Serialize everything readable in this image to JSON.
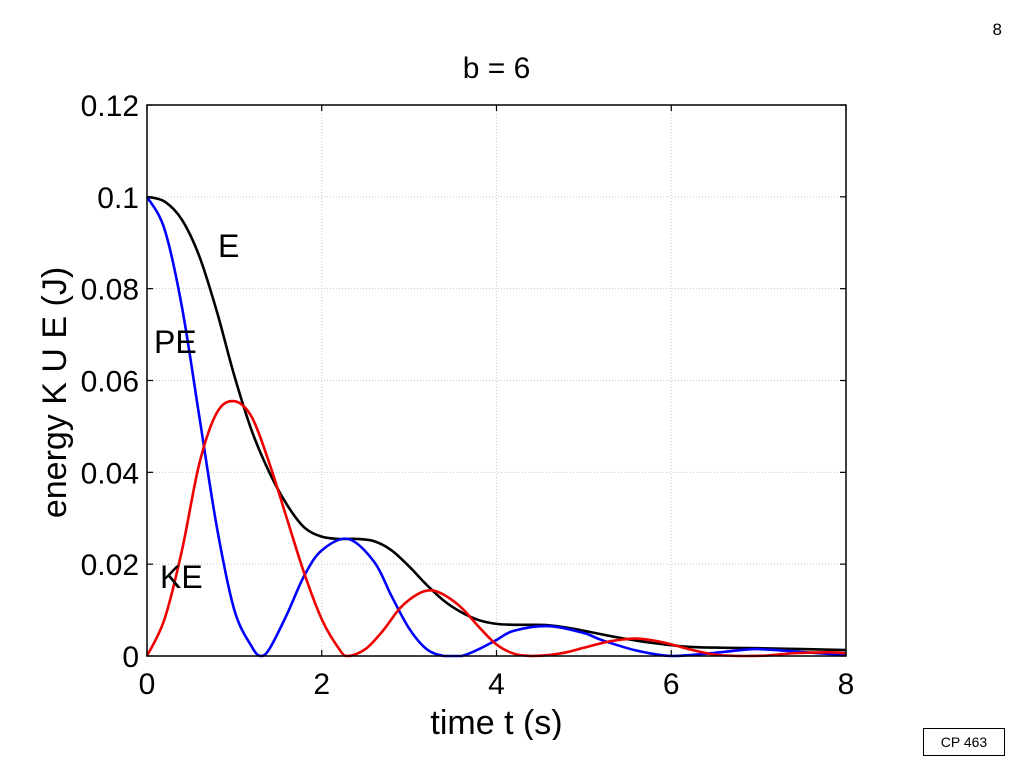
{
  "slide": {
    "page_number": "8",
    "footer": "CP 463"
  },
  "chart_data": {
    "type": "line",
    "title": "b = 6",
    "xlabel": "time  t  (s)",
    "ylabel": "energy K U E (J)",
    "xlim": [
      0,
      8
    ],
    "ylim": [
      0,
      0.12
    ],
    "x_ticks": [
      0,
      2,
      4,
      6,
      8
    ],
    "x_tick_labels": [
      "0",
      "2",
      "4",
      "6",
      "8"
    ],
    "y_ticks": [
      0,
      0.02,
      0.04,
      0.06,
      0.08,
      0.1,
      0.12
    ],
    "y_tick_labels": [
      "0",
      "0.02",
      "0.04",
      "0.06",
      "0.08",
      "0.1",
      "0.12"
    ],
    "grid": true,
    "legend": "none",
    "annotations": [
      {
        "text": "E",
        "series": "E"
      },
      {
        "text": "PE",
        "series": "PE"
      },
      {
        "text": "KE",
        "series": "KE"
      }
    ],
    "series": [
      {
        "name": "E",
        "color": "#000000",
        "x": [
          0,
          0.2,
          0.4,
          0.6,
          0.8,
          1.0,
          1.2,
          1.4,
          1.6,
          1.8,
          2.0,
          2.2,
          2.4,
          2.6,
          2.8,
          3.0,
          3.2,
          3.4,
          3.6,
          3.8,
          4.0,
          4.2,
          4.4,
          4.6,
          4.8,
          5.0,
          5.4,
          5.8,
          6.2,
          6.6,
          7.0,
          7.5,
          8.0
        ],
        "y": [
          0.1,
          0.099,
          0.095,
          0.087,
          0.075,
          0.061,
          0.049,
          0.04,
          0.033,
          0.028,
          0.026,
          0.0255,
          0.0255,
          0.025,
          0.023,
          0.0195,
          0.0155,
          0.012,
          0.0095,
          0.0078,
          0.007,
          0.0068,
          0.0068,
          0.0067,
          0.0062,
          0.0055,
          0.004,
          0.0028,
          0.002,
          0.0018,
          0.0017,
          0.0015,
          0.0013
        ]
      },
      {
        "name": "PE",
        "color": "#0000ff",
        "x": [
          0,
          0.2,
          0.4,
          0.6,
          0.8,
          1.0,
          1.2,
          1.3,
          1.4,
          1.6,
          1.8,
          2.0,
          2.3,
          2.6,
          2.8,
          3.0,
          3.2,
          3.4,
          3.6,
          3.8,
          4.0,
          4.2,
          4.6,
          5.0,
          5.2,
          5.6,
          6.0,
          6.4,
          6.8,
          7.0,
          7.4,
          8.0
        ],
        "y": [
          0.1,
          0.093,
          0.076,
          0.052,
          0.028,
          0.01,
          0.002,
          0.0,
          0.0015,
          0.009,
          0.0175,
          0.023,
          0.0255,
          0.0205,
          0.013,
          0.006,
          0.0015,
          0.0,
          0.0,
          0.0015,
          0.0035,
          0.0055,
          0.0065,
          0.005,
          0.0035,
          0.0012,
          0.0,
          0.0005,
          0.0013,
          0.0015,
          0.001,
          0.0002
        ]
      },
      {
        "name": "KE",
        "color": "#ee0000",
        "x": [
          0,
          0.2,
          0.4,
          0.6,
          0.8,
          1.0,
          1.2,
          1.4,
          1.6,
          1.8,
          2.0,
          2.2,
          2.3,
          2.5,
          2.7,
          2.9,
          3.1,
          3.25,
          3.4,
          3.6,
          3.8,
          4.0,
          4.2,
          4.4,
          4.6,
          4.8,
          5.0,
          5.3,
          5.6,
          5.9,
          6.2,
          6.5,
          6.8,
          7.1,
          7.4,
          7.8,
          8.0
        ],
        "y": [
          0.0,
          0.008,
          0.023,
          0.042,
          0.053,
          0.0555,
          0.052,
          0.042,
          0.03,
          0.018,
          0.008,
          0.0015,
          0.0,
          0.0015,
          0.0055,
          0.0105,
          0.0135,
          0.0143,
          0.0133,
          0.0105,
          0.0063,
          0.0025,
          0.0005,
          0.0,
          0.0002,
          0.0008,
          0.0018,
          0.0032,
          0.0038,
          0.003,
          0.0015,
          0.0003,
          0.0,
          0.0001,
          0.0006,
          0.0008,
          0.0006
        ]
      }
    ]
  }
}
